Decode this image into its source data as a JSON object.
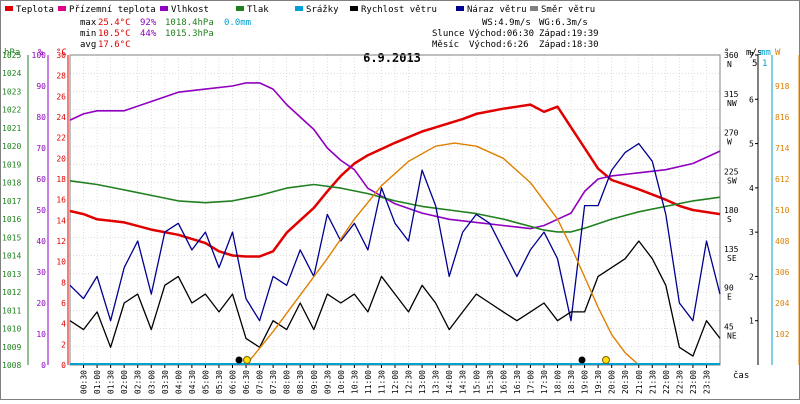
{
  "legend": [
    {
      "label": "Teplota",
      "color": "#e00000"
    },
    {
      "label": "Přízemní teplota",
      "color": "#e00090"
    },
    {
      "label": "Vlhkost",
      "color": "#9000c0"
    },
    {
      "label": "Tlak",
      "color": "#208020"
    },
    {
      "label": "Srážky",
      "color": "#00a0d0"
    },
    {
      "label": "Rychlost větru",
      "color": "#000000"
    },
    {
      "label": "Náraz větru",
      "color": "#000090"
    },
    {
      "label": "Směr větru",
      "color": "#808080"
    }
  ],
  "stats": {
    "max_label": "max",
    "max_temp": "25.4°C",
    "max_hum": "92%",
    "max_press": "1018.4hPa",
    "max_rain": "0.0mm",
    "min_label": "min",
    "min_temp": "10.5°C",
    "min_hum": "44%",
    "min_press": "1015.3hPa",
    "avg_label": "avg",
    "avg_temp": "17.6°C"
  },
  "wind_info": {
    "ws": "WS:4.9m/s",
    "wg": "WG:6.3m/s",
    "sun_label": "Slunce",
    "sun_rise": "Východ:06:30",
    "sun_set": "Západ:19:39",
    "moon_label": "Měsíc",
    "moon_rise": "Východ:6:26",
    "moon_set": "Západ:18:30"
  },
  "colors": {
    "temp": "#e00000",
    "humidity": "#9000c0",
    "pressure": "#208020",
    "wind": "#000000",
    "gust": "#000090",
    "sun": "#e08000",
    "rain": "#00a0d0",
    "grid": "#c8c8c8"
  },
  "chart_data": {
    "type": "line",
    "title": "6.9.2013",
    "xlabel": "čas",
    "x_ticks": [
      "00:30",
      "01:00",
      "01:30",
      "02:00",
      "02:30",
      "03:00",
      "03:30",
      "04:00",
      "04:30",
      "05:00",
      "05:30",
      "06:00",
      "06:30",
      "07:00",
      "07:30",
      "08:00",
      "08:30",
      "09:00",
      "09:30",
      "10:00",
      "10:30",
      "11:00",
      "11:30",
      "12:00",
      "12:30",
      "13:00",
      "13:30",
      "14:00",
      "14:30",
      "15:00",
      "15:30",
      "16:00",
      "16:30",
      "17:00",
      "17:30",
      "18:00",
      "18:30",
      "19:00",
      "19:30",
      "20:00",
      "20:30",
      "21:00",
      "21:30",
      "22:00",
      "22:30",
      "23:00",
      "23:30"
    ],
    "axes": {
      "pressure": {
        "unit": "hPa",
        "ticks": [
          "1025",
          "1024",
          "1023",
          "1022",
          "1021",
          "1020",
          "1019",
          "1018",
          "1017",
          "1016",
          "1015",
          "1014",
          "1013",
          "1012",
          "1011",
          "1010",
          "1009",
          "1008"
        ],
        "range": [
          1008,
          1025
        ]
      },
      "humidity": {
        "unit": "%",
        "ticks": [
          "100",
          "90",
          "80",
          "70",
          "60",
          "50",
          "40",
          "30",
          "20",
          "10",
          "0"
        ],
        "range": [
          0,
          100
        ]
      },
      "temperature": {
        "unit": "°C",
        "ticks": [
          "30",
          "28",
          "26",
          "24",
          "22",
          "20",
          "18",
          "16",
          "14",
          "12",
          "10",
          "8",
          "6",
          "4",
          "2",
          "0"
        ],
        "range": [
          0,
          30
        ]
      },
      "direction": {
        "unit": "°",
        "ticks": [
          [
            "360",
            "N"
          ],
          [
            "315",
            "NW"
          ],
          [
            "270",
            "W"
          ],
          [
            "225",
            "SW"
          ],
          [
            "180",
            "S"
          ],
          [
            "135",
            "SE"
          ],
          [
            "90",
            "E"
          ],
          [
            "45",
            "NE"
          ]
        ],
        "range": [
          0,
          360
        ]
      },
      "wind": {
        "unit": "m/s",
        "ticks": [
          "7",
          "6",
          "5",
          "4",
          "3",
          "2",
          "1"
        ],
        "range": [
          0,
          7
        ],
        "top_tick": "5"
      },
      "rain": {
        "unit": "mm",
        "top_tick": "1"
      },
      "solar": {
        "unit": "W",
        "ticks": [
          "918",
          "816",
          "714",
          "612",
          "510",
          "408",
          "306",
          "204",
          "102"
        ],
        "range": [
          0,
          1020
        ]
      }
    },
    "series": [
      {
        "name": "Teplota",
        "color": "#e00000",
        "x": [
          0,
          0.5,
          1,
          2,
          3,
          4,
          5,
          5.5,
          6,
          6.5,
          7,
          7.5,
          8,
          8.5,
          9,
          9.5,
          10,
          10.5,
          11,
          12,
          13,
          14,
          14.5,
          15,
          16,
          16.5,
          17,
          17.5,
          18,
          19,
          19.5,
          20,
          21,
          22,
          22.5,
          23,
          24
        ],
        "y": [
          14.9,
          14.6,
          14.1,
          13.8,
          13.1,
          12.6,
          11.8,
          11.0,
          10.6,
          10.5,
          10.5,
          11.0,
          12.8,
          14.0,
          15.2,
          16.8,
          18.3,
          19.5,
          20.3,
          21.5,
          22.6,
          23.4,
          23.8,
          24.3,
          24.8,
          25.0,
          25.2,
          24.5,
          25.0,
          21.0,
          19.0,
          17.9,
          17.0,
          16.0,
          15.4,
          15.0,
          14.6
        ]
      },
      {
        "name": "Vlhkost",
        "color": "#9000c0",
        "x": [
          0,
          0.5,
          1,
          2,
          3,
          4,
          5,
          6,
          6.5,
          7,
          7.5,
          8,
          8.5,
          9,
          9.5,
          10,
          10.5,
          11,
          12,
          13,
          14,
          15,
          16,
          17,
          17.5,
          18,
          18.5,
          19,
          19.5,
          20,
          21,
          22,
          23,
          24
        ],
        "y": [
          79,
          81,
          82,
          82,
          85,
          88,
          89,
          90,
          91,
          91,
          89,
          84,
          80,
          76,
          70,
          66,
          63,
          57,
          52,
          49,
          47,
          46,
          45,
          44,
          45,
          47,
          49,
          56,
          60,
          61,
          62,
          63,
          65,
          69
        ]
      },
      {
        "name": "Tlak",
        "color": "#208020",
        "x": [
          0,
          1,
          2,
          3,
          4,
          5,
          6,
          7,
          8,
          9,
          10,
          11,
          12,
          13,
          14,
          15,
          16,
          17,
          17.5,
          18,
          18.5,
          19,
          20,
          21,
          22,
          23,
          24
        ],
        "y": [
          1018.1,
          1017.9,
          1017.6,
          1017.3,
          1017.0,
          1016.9,
          1017.0,
          1017.3,
          1017.7,
          1017.9,
          1017.7,
          1017.4,
          1017.0,
          1016.7,
          1016.5,
          1016.3,
          1016.0,
          1015.6,
          1015.4,
          1015.3,
          1015.3,
          1015.5,
          1016.0,
          1016.4,
          1016.7,
          1017.0,
          1017.2
        ]
      },
      {
        "name": "Náraz větru",
        "color": "#000090",
        "x": [
          0,
          0.5,
          1,
          1.5,
          2,
          2.5,
          3,
          3.5,
          4,
          4.5,
          5,
          5.5,
          6,
          6.5,
          7,
          7.5,
          8,
          8.5,
          9,
          9.5,
          10,
          10.5,
          11,
          11.5,
          12,
          12.5,
          13,
          13.5,
          14,
          14.5,
          15,
          15.5,
          16,
          16.5,
          17,
          17.5,
          18,
          18.5,
          19,
          19.5,
          20,
          20.5,
          21,
          21.5,
          22,
          22.5,
          23,
          23.5,
          24
        ],
        "y": [
          1.8,
          1.5,
          2.0,
          1.0,
          2.2,
          2.8,
          1.6,
          3.0,
          3.2,
          2.6,
          3.0,
          2.2,
          3.0,
          1.5,
          1.0,
          2.0,
          1.8,
          2.6,
          2.0,
          3.4,
          2.8,
          3.2,
          2.6,
          4.0,
          3.2,
          2.8,
          4.4,
          3.6,
          2.0,
          3.0,
          3.4,
          3.2,
          2.6,
          2.0,
          2.6,
          3.0,
          2.4,
          1.0,
          3.6,
          3.6,
          4.4,
          4.8,
          5.0,
          4.6,
          3.4,
          1.4,
          1.0,
          2.8,
          1.6
        ]
      },
      {
        "name": "Rychlost větru",
        "color": "#000000",
        "x": [
          0,
          0.5,
          1,
          1.5,
          2,
          2.5,
          3,
          3.5,
          4,
          4.5,
          5,
          5.5,
          6,
          6.5,
          7,
          7.5,
          8,
          8.5,
          9,
          9.5,
          10,
          10.5,
          11,
          11.5,
          12,
          12.5,
          13,
          13.5,
          14,
          14.5,
          15,
          15.5,
          16,
          16.5,
          17,
          17.5,
          18,
          18.5,
          19,
          19.5,
          20,
          20.5,
          21,
          21.5,
          22,
          22.5,
          23,
          23.5,
          24
        ],
        "y": [
          1.0,
          0.8,
          1.2,
          0.4,
          1.4,
          1.6,
          0.8,
          1.8,
          2.0,
          1.4,
          1.6,
          1.2,
          1.6,
          0.6,
          0.4,
          1.0,
          0.8,
          1.4,
          0.8,
          1.6,
          1.4,
          1.6,
          1.2,
          2.0,
          1.6,
          1.2,
          1.8,
          1.4,
          0.8,
          1.2,
          1.6,
          1.4,
          1.2,
          1.0,
          1.2,
          1.4,
          1.0,
          1.2,
          1.2,
          2.0,
          2.2,
          2.4,
          2.8,
          2.4,
          1.8,
          0.4,
          0.2,
          1.0,
          0.6
        ]
      },
      {
        "name": "Slunce",
        "color": "#e08000",
        "x": [
          6.5,
          7.5,
          8.5,
          9.5,
          10.5,
          11.5,
          12.5,
          13.5,
          14.2,
          15,
          16,
          17,
          18,
          18.5,
          19,
          19.5,
          20,
          20.5,
          21
        ],
        "y": [
          0,
          110,
          230,
          350,
          480,
          590,
          670,
          720,
          730,
          720,
          680,
          600,
          480,
          390,
          290,
          190,
          100,
          40,
          0
        ]
      }
    ],
    "rain": {
      "values": [
        0.0
      ]
    }
  }
}
